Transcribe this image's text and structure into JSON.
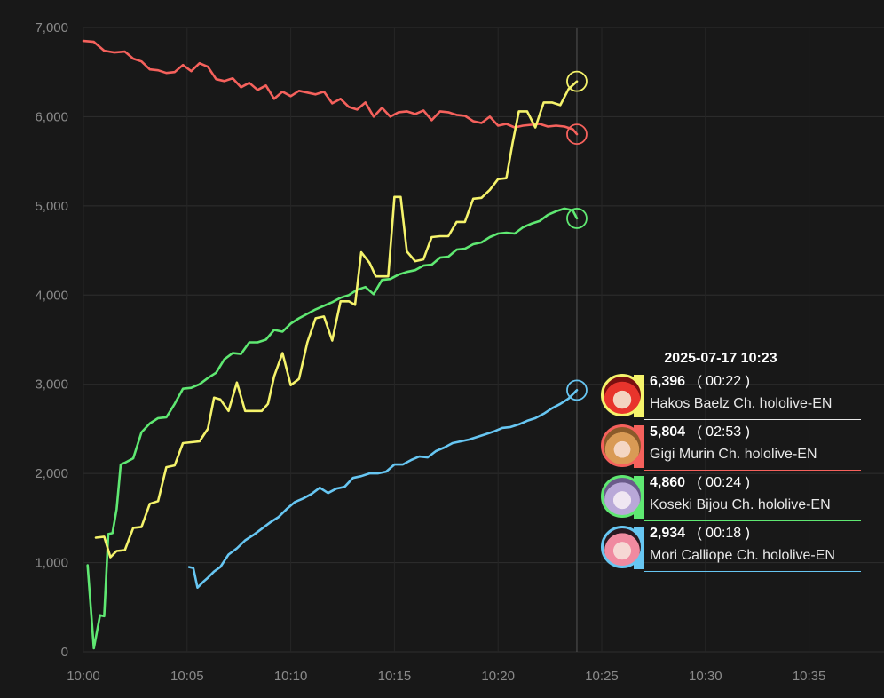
{
  "chart_data": {
    "type": "line",
    "ylim": [
      0,
      7000
    ],
    "y_ticks": [
      "0",
      "1,000",
      "2,000",
      "3,000",
      "4,000",
      "5,000",
      "6,000",
      "7,000"
    ],
    "x_ticks": [
      "10:00",
      "10:05",
      "10:10",
      "10:15",
      "10:20",
      "10:25",
      "10:30",
      "10:35"
    ],
    "xlim_minutes": [
      0,
      38
    ],
    "grid": true,
    "cursor_x_minutes": 23.8,
    "series": [
      {
        "name": "Hakos Baelz Ch. hololive-EN",
        "color": "#f5f36b",
        "x": [
          0.6,
          1.0,
          1.3,
          1.6,
          2.0,
          2.4,
          2.8,
          3.2,
          3.6,
          4.0,
          4.4,
          4.8,
          5.2,
          5.6,
          6.0,
          6.3,
          6.6,
          7.0,
          7.4,
          7.8,
          8.2,
          8.6,
          8.9,
          9.2,
          9.6,
          10.0,
          10.4,
          10.8,
          11.2,
          11.6,
          12.0,
          12.4,
          12.8,
          13.1,
          13.4,
          13.8,
          14.1,
          14.4,
          14.7,
          15.0,
          15.3,
          15.6,
          16.0,
          16.4,
          16.8,
          17.2,
          17.6,
          18.0,
          18.4,
          18.8,
          19.2,
          19.6,
          20.0,
          20.4,
          20.7,
          21.0,
          21.4,
          21.8,
          22.2,
          22.6,
          23.0,
          23.4,
          23.8
        ],
        "values": [
          1280,
          1290,
          1060,
          1130,
          1140,
          1390,
          1400,
          1660,
          1690,
          2070,
          2090,
          2340,
          2350,
          2360,
          2500,
          2850,
          2830,
          2700,
          3020,
          2700,
          2700,
          2700,
          2780,
          3090,
          3350,
          2990,
          3060,
          3470,
          3740,
          3760,
          3490,
          3930,
          3930,
          3890,
          4480,
          4360,
          4210,
          4210,
          4210,
          5100,
          5100,
          4490,
          4380,
          4400,
          4650,
          4660,
          4660,
          4820,
          4820,
          5080,
          5090,
          5180,
          5300,
          5310,
          5710,
          6060,
          6060,
          5880,
          6160,
          6160,
          6130,
          6310,
          6396
        ],
        "label_value": "6,396",
        "label_time": "( 00:22 )",
        "tooltip_line_color": "#e8e8e8"
      },
      {
        "name": "Gigi Murin Ch. hololive-EN",
        "color": "#f5615c",
        "x": [
          0,
          0.5,
          1.0,
          1.5,
          2.0,
          2.4,
          2.8,
          3.2,
          3.6,
          4.0,
          4.4,
          4.8,
          5.2,
          5.6,
          6.0,
          6.4,
          6.8,
          7.2,
          7.6,
          8.0,
          8.4,
          8.8,
          9.2,
          9.6,
          10.0,
          10.4,
          10.8,
          11.2,
          11.6,
          12.0,
          12.4,
          12.8,
          13.2,
          13.6,
          14.0,
          14.4,
          14.8,
          15.2,
          15.6,
          16.0,
          16.4,
          16.8,
          17.2,
          17.6,
          18.0,
          18.4,
          18.8,
          19.2,
          19.6,
          20.0,
          20.4,
          20.8,
          21.2,
          21.6,
          22.0,
          22.4,
          22.8,
          23.2,
          23.6,
          23.8
        ],
        "values": [
          6850,
          6840,
          6740,
          6720,
          6730,
          6650,
          6620,
          6530,
          6520,
          6490,
          6500,
          6580,
          6510,
          6600,
          6560,
          6420,
          6400,
          6430,
          6330,
          6380,
          6300,
          6350,
          6200,
          6280,
          6230,
          6290,
          6270,
          6250,
          6280,
          6150,
          6200,
          6110,
          6080,
          6160,
          6000,
          6100,
          6000,
          6050,
          6060,
          6030,
          6070,
          5960,
          6060,
          6050,
          6020,
          6010,
          5950,
          5930,
          6000,
          5900,
          5920,
          5880,
          5900,
          5910,
          5920,
          5890,
          5900,
          5890,
          5860,
          5804
        ],
        "label_value": "5,804",
        "label_time": "( 02:53 )",
        "tooltip_line_color": "#f5615c"
      },
      {
        "name": "Koseki Bijou Ch. hololive-EN",
        "color": "#5fe872",
        "x": [
          0.2,
          0.5,
          0.8,
          1.0,
          1.2,
          1.4,
          1.6,
          1.8,
          2.0,
          2.4,
          2.8,
          3.2,
          3.6,
          4.0,
          4.4,
          4.8,
          5.2,
          5.6,
          6.0,
          6.4,
          6.8,
          7.2,
          7.6,
          8.0,
          8.4,
          8.8,
          9.2,
          9.6,
          10.0,
          10.4,
          10.8,
          11.2,
          11.6,
          12.0,
          12.4,
          12.8,
          13.2,
          13.6,
          14.0,
          14.4,
          14.8,
          15.2,
          15.6,
          16.0,
          16.4,
          16.8,
          17.2,
          17.6,
          18.0,
          18.4,
          18.8,
          19.2,
          19.6,
          20.0,
          20.4,
          20.8,
          21.2,
          21.6,
          22.0,
          22.4,
          22.8,
          23.2,
          23.6,
          23.8
        ],
        "values": [
          970,
          40,
          410,
          400,
          1320,
          1330,
          1600,
          2100,
          2120,
          2170,
          2460,
          2560,
          2620,
          2630,
          2780,
          2950,
          2960,
          3000,
          3070,
          3130,
          3280,
          3350,
          3340,
          3470,
          3470,
          3500,
          3610,
          3590,
          3680,
          3740,
          3790,
          3840,
          3880,
          3920,
          3970,
          4000,
          4060,
          4090,
          4010,
          4170,
          4180,
          4230,
          4260,
          4280,
          4330,
          4340,
          4420,
          4430,
          4510,
          4520,
          4570,
          4590,
          4650,
          4690,
          4700,
          4690,
          4760,
          4800,
          4830,
          4900,
          4940,
          4970,
          4950,
          4860
        ],
        "label_value": "4,860",
        "label_time": "( 00:24 )",
        "tooltip_line_color": "#5fe872"
      },
      {
        "name": "Mori Calliope Ch. hololive-EN",
        "color": "#67c6f2",
        "x": [
          5.1,
          5.3,
          5.5,
          5.8,
          6.0,
          6.3,
          6.6,
          7.0,
          7.4,
          7.8,
          8.2,
          8.6,
          9.0,
          9.4,
          9.8,
          10.2,
          10.6,
          11.0,
          11.4,
          11.8,
          12.2,
          12.6,
          13.0,
          13.4,
          13.8,
          14.2,
          14.6,
          15.0,
          15.4,
          15.8,
          16.2,
          16.6,
          17.0,
          17.4,
          17.8,
          18.2,
          18.6,
          19.0,
          19.4,
          19.8,
          20.2,
          20.6,
          21.0,
          21.4,
          21.8,
          22.2,
          22.6,
          23.0,
          23.4,
          23.8
        ],
        "values": [
          950,
          940,
          720,
          790,
          830,
          900,
          950,
          1090,
          1160,
          1250,
          1310,
          1380,
          1450,
          1510,
          1600,
          1680,
          1720,
          1770,
          1840,
          1780,
          1830,
          1850,
          1950,
          1970,
          2000,
          2000,
          2020,
          2100,
          2100,
          2150,
          2190,
          2180,
          2250,
          2290,
          2340,
          2360,
          2380,
          2410,
          2440,
          2470,
          2510,
          2520,
          2550,
          2590,
          2620,
          2670,
          2730,
          2780,
          2840,
          2934
        ],
        "label_value": "2,934",
        "label_time": "( 00:18 )",
        "tooltip_line_color": "#67c6f2"
      }
    ]
  },
  "tooltip": {
    "title": "2025-07-17 10:23"
  }
}
